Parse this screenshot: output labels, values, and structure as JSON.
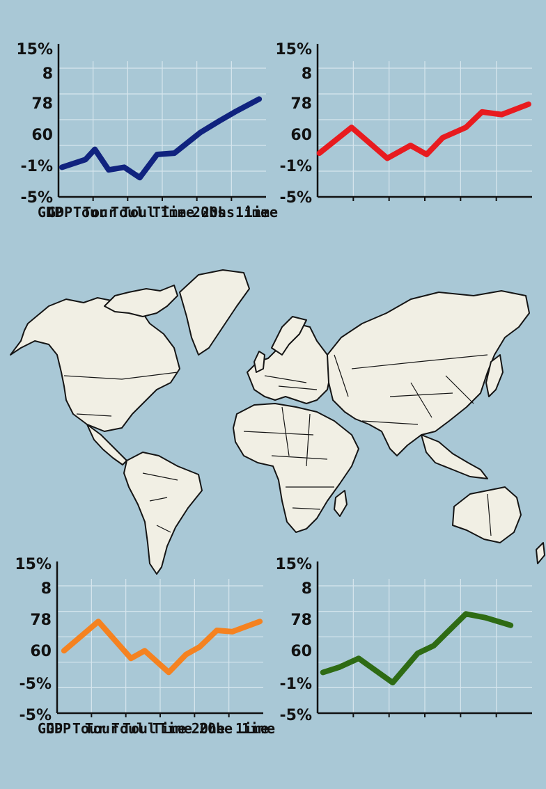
{
  "chart_data": [
    {
      "type": "line",
      "y_tick_labels": [
        "15%",
        "8",
        "78",
        "60",
        "-1%",
        "-5%"
      ],
      "x_tick_labels": [
        "GDP",
        "Tour",
        "Toul",
        "Time",
        "20hs",
        "1ime"
      ],
      "grid": true,
      "series": [
        {
          "color": "#10237f",
          "x": [
            0.1,
            0.78,
            1.05,
            1.45,
            1.9,
            2.35,
            2.85,
            3.35,
            4.1,
            4.65,
            5.1,
            5.8
          ],
          "y": [
            1.15,
            1.45,
            1.85,
            1.05,
            1.15,
            0.75,
            1.65,
            1.7,
            2.5,
            2.95,
            3.3,
            3.8
          ]
        }
      ]
    },
    {
      "type": "line",
      "y_tick_labels": [
        "15%",
        "8",
        "78",
        "60",
        "-1%",
        "-5%"
      ],
      "x_tick_labels": [
        "GDP",
        "Tour",
        "Toul",
        "Time",
        "20hs",
        "1ime"
      ],
      "grid": true,
      "series": [
        {
          "color": "#e81b1f",
          "x": [
            0.05,
            0.95,
            1.95,
            2.6,
            3.05,
            3.5,
            4.15,
            4.6,
            5.15,
            5.9
          ],
          "y": [
            1.7,
            2.7,
            1.5,
            2.0,
            1.65,
            2.3,
            2.7,
            3.3,
            3.2,
            3.6
          ]
        }
      ]
    },
    {
      "type": "line",
      "y_tick_labels": [
        "15%",
        "8",
        "78",
        "60",
        "-5%",
        "-5%"
      ],
      "x_tick_labels": [
        "GDP",
        "Tour",
        "Toul",
        "Time",
        "20he",
        "1ime"
      ],
      "grid": true,
      "series": [
        {
          "color": "#f58220",
          "x": [
            0.2,
            1.2,
            2.15,
            2.55,
            3.25,
            3.75,
            4.15,
            4.65,
            5.1,
            5.9
          ],
          "y": [
            2.45,
            3.6,
            2.15,
            2.45,
            1.6,
            2.3,
            2.6,
            3.25,
            3.2,
            3.6
          ]
        }
      ]
    },
    {
      "type": "line",
      "y_tick_labels": [
        "15%",
        "8",
        "78",
        "60",
        "-1%",
        "-5%"
      ],
      "x_tick_labels": [
        "GDP",
        "Tour",
        "Toul",
        "Time",
        "20he",
        "1ime"
      ],
      "grid": true,
      "series": [
        {
          "color": "#2e6b14",
          "x": [
            0.15,
            0.6,
            1.15,
            2.1,
            2.8,
            3.25,
            4.15,
            4.7,
            5.4
          ],
          "y": [
            1.6,
            1.8,
            2.15,
            1.2,
            2.35,
            2.65,
            3.9,
            3.75,
            3.45
          ]
        }
      ]
    }
  ],
  "map": {
    "land_color": "#f1efe4",
    "border_color": "#151515"
  }
}
